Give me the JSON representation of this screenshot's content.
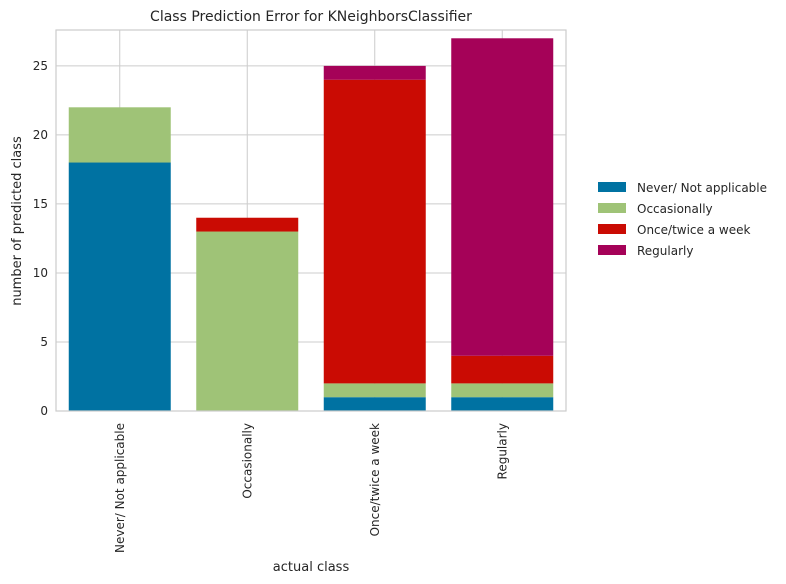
{
  "chart_data": {
    "type": "bar",
    "stacked": true,
    "title": "Class Prediction Error for KNeighborsClassifier",
    "xlabel": "actual class",
    "ylabel": "number of predicted class",
    "categories": [
      "Never/ Not applicable",
      "Occasionally",
      "Once/twice a week",
      "Regularly"
    ],
    "ylim": [
      0,
      27.6
    ],
    "yticks": [
      0,
      5,
      10,
      15,
      20,
      25
    ],
    "grid": true,
    "legend_position": "right",
    "series": [
      {
        "name": "Never/ Not applicable",
        "color": "#0072A2",
        "values": [
          18,
          0,
          1,
          1
        ]
      },
      {
        "name": "Occasionally",
        "color": "#9FC377",
        "values": [
          4,
          13,
          1,
          1
        ]
      },
      {
        "name": "Once/twice a week",
        "color": "#CA0B03",
        "values": [
          0,
          1,
          22,
          2
        ]
      },
      {
        "name": "Regularly",
        "color": "#A50258",
        "values": [
          0,
          0,
          1,
          23
        ]
      }
    ]
  }
}
